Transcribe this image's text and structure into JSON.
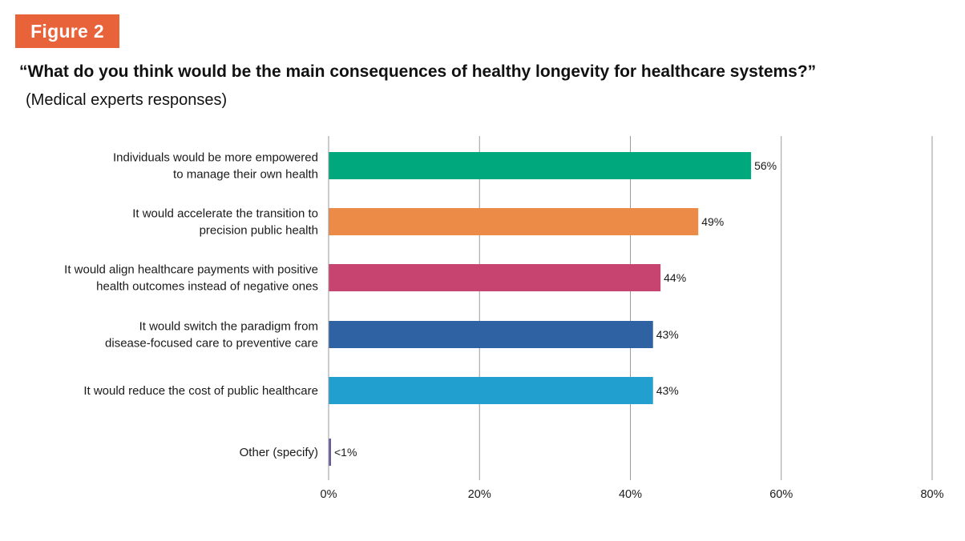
{
  "figure_label": "Figure 2",
  "title": "“What do you think would be the main consequences of healthy longevity for healthcare systems?”",
  "subtitle": "(Medical experts responses)",
  "chart_data": {
    "type": "bar",
    "orientation": "horizontal",
    "title": "“What do you think would be the main consequences of healthy longevity for healthcare systems?”",
    "subtitle": "(Medical experts responses)",
    "categories": [
      [
        "Individuals would be more empowered",
        "to manage their own health"
      ],
      [
        "It would accelerate the transition to",
        "precision public health"
      ],
      [
        "It would align healthcare payments with positive",
        "health outcomes instead of negative ones"
      ],
      [
        "It would switch the paradigm from",
        "disease-focused care to preventive care"
      ],
      [
        "It would reduce the cost of public healthcare"
      ],
      [
        "Other (specify)"
      ]
    ],
    "values": [
      56,
      49,
      44,
      43,
      43,
      0.3
    ],
    "data_labels": [
      "56%",
      "49%",
      "44%",
      "43%",
      "43%",
      "<1%"
    ],
    "colors": [
      "#00a87e",
      "#ec8a48",
      "#c84470",
      "#2e62a2",
      "#21a0d0",
      "#6a5a9e"
    ],
    "xlim": [
      0,
      80
    ],
    "x_ticks": [
      0,
      20,
      40,
      60,
      80
    ],
    "x_tick_labels": [
      "0%",
      "20%",
      "40%",
      "60%",
      "80%"
    ],
    "grid": true,
    "legend": "none"
  }
}
